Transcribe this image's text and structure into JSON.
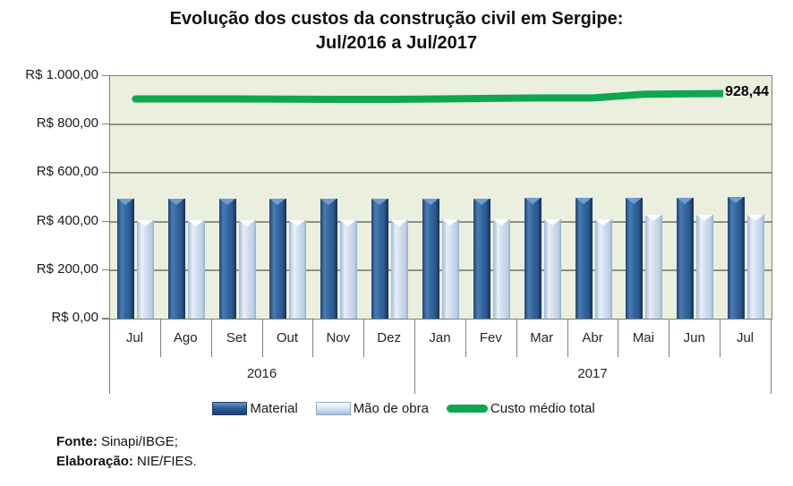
{
  "title": {
    "line1": "Evolução dos custos da construção civil em Sergipe:",
    "line2": "Jul/2016 a Jul/2017"
  },
  "footer": {
    "fonte_label": "Fonte:",
    "fonte_text": " Sinapi/IBGE;",
    "elaboracao_label": "Elaboração:",
    "elaboracao_text": " NIE/FIES."
  },
  "colors": {
    "plot_background": "#ebefde",
    "gridline": "#7d8170",
    "axis_line": "#7f7f7f",
    "material_bar": "#2d5e95",
    "mao_de_obra_bar": "#cedced",
    "line_green": "#0ea750",
    "text": "#1a1a1a"
  },
  "chart_data": {
    "type": "bar",
    "subtype": "grouped bars with overlaid line",
    "title": "Evolução dos custos da construção civil em Sergipe: Jul/2016 a Jul/2017",
    "categories": [
      "Jul",
      "Ago",
      "Set",
      "Out",
      "Nov",
      "Dez",
      "Jan",
      "Fev",
      "Mar",
      "Abr",
      "Mai",
      "Jun",
      "Jul"
    ],
    "year_groups": [
      {
        "label": "2016",
        "months": 6
      },
      {
        "label": "2017",
        "months": 7
      }
    ],
    "series": [
      {
        "name": "Material",
        "type": "bar",
        "color": "#2d5e95",
        "values": [
          496,
          496,
          496,
          496,
          496,
          496,
          495,
          496,
          497,
          497,
          499,
          500,
          501
        ]
      },
      {
        "name": "Mão de obra",
        "type": "bar",
        "color": "#cedced",
        "values": [
          405,
          405,
          405,
          405,
          405,
          405,
          408,
          409,
          410,
          410,
          427,
          428,
          428
        ]
      },
      {
        "name": "Custo médio total",
        "type": "line",
        "color": "#0ea750",
        "values": [
          906,
          906,
          906,
          905,
          904,
          904,
          906,
          908,
          910,
          910,
          925,
          927,
          928.44
        ]
      }
    ],
    "y_axis": {
      "tick_labels": [
        "R$ 1.000,00",
        "R$ 800,00",
        "R$ 600,00",
        "R$ 400,00",
        "R$ 200,00",
        "R$ 0,00"
      ],
      "tick_values": [
        1000,
        800,
        600,
        400,
        200,
        0
      ],
      "ylim": [
        0,
        1000
      ]
    },
    "end_label": "928,44",
    "grid": true,
    "legend_position": "bottom"
  }
}
